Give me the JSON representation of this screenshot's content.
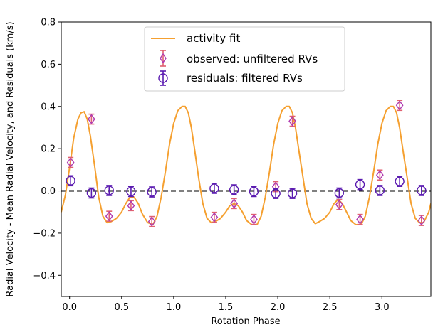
{
  "chart_data": {
    "type": "scatter",
    "xlabel": "Rotation Phase",
    "ylabel": "Radial Velocity - Mean Radial Velocity, and Residuals (km/s)",
    "xlim": [
      -0.08,
      3.47
    ],
    "ylim": [
      -0.5,
      0.8
    ],
    "xticks": [
      0.0,
      0.5,
      1.0,
      1.5,
      2.0,
      2.5,
      3.0
    ],
    "xtick_labels": [
      "0.0",
      "0.5",
      "1.0",
      "1.5",
      "2.0",
      "2.5",
      "3.0"
    ],
    "yticks": [
      -0.4,
      -0.2,
      0.0,
      0.2,
      0.4,
      0.6,
      0.8
    ],
    "ytick_labels": [
      "−0.4",
      "−0.2",
      "0.0",
      "0.2",
      "0.4",
      "0.6",
      "0.8"
    ],
    "legend_position": "top-center",
    "zero_line": {
      "y": 0.0,
      "style": "dashed",
      "color": "#000000"
    },
    "series": [
      {
        "name": "activity fit",
        "kind": "line",
        "color": "#f5a030",
        "x": [
          -0.08,
          -0.04,
          0.0,
          0.04,
          0.08,
          0.11,
          0.14,
          0.17,
          0.2,
          0.24,
          0.28,
          0.32,
          0.36,
          0.4,
          0.45,
          0.5,
          0.54,
          0.58,
          0.62,
          0.66,
          0.7,
          0.75,
          0.8,
          0.84,
          0.88,
          0.92,
          0.96,
          1.0,
          1.04,
          1.08,
          1.11,
          1.14,
          1.17,
          1.2,
          1.24,
          1.28,
          1.32,
          1.36,
          1.4,
          1.45,
          1.5,
          1.54,
          1.58,
          1.62,
          1.66,
          1.7,
          1.75,
          1.8,
          1.84,
          1.88,
          1.92,
          1.96,
          2.0,
          2.04,
          2.08,
          2.11,
          2.14,
          2.17,
          2.2,
          2.24,
          2.28,
          2.32,
          2.36,
          2.4,
          2.45,
          2.5,
          2.54,
          2.58,
          2.62,
          2.66,
          2.7,
          2.75,
          2.8,
          2.84,
          2.88,
          2.92,
          2.96,
          3.0,
          3.04,
          3.08,
          3.11,
          3.14,
          3.17,
          3.2,
          3.24,
          3.28,
          3.32,
          3.36,
          3.4,
          3.45,
          3.47
        ],
        "y": [
          -0.1,
          -0.02,
          0.11,
          0.25,
          0.34,
          0.37,
          0.375,
          0.34,
          0.26,
          0.12,
          -0.03,
          -0.12,
          -0.15,
          -0.145,
          -0.13,
          -0.1,
          -0.06,
          -0.03,
          -0.03,
          -0.06,
          -0.11,
          -0.15,
          -0.16,
          -0.12,
          -0.03,
          0.09,
          0.22,
          0.32,
          0.38,
          0.4,
          0.4,
          0.37,
          0.3,
          0.2,
          0.06,
          -0.06,
          -0.13,
          -0.15,
          -0.145,
          -0.13,
          -0.1,
          -0.07,
          -0.06,
          -0.07,
          -0.1,
          -0.14,
          -0.16,
          -0.16,
          -0.12,
          -0.03,
          0.09,
          0.22,
          0.32,
          0.38,
          0.4,
          0.4,
          0.37,
          0.3,
          0.2,
          0.07,
          -0.06,
          -0.13,
          -0.155,
          -0.145,
          -0.13,
          -0.1,
          -0.06,
          -0.04,
          -0.06,
          -0.1,
          -0.14,
          -0.16,
          -0.16,
          -0.12,
          -0.03,
          0.09,
          0.22,
          0.32,
          0.38,
          0.4,
          0.4,
          0.37,
          0.3,
          0.2,
          0.07,
          -0.06,
          -0.13,
          -0.15,
          -0.15,
          -0.1,
          -0.06
        ]
      },
      {
        "name": "observed: unfiltered RVs",
        "kind": "errorbar",
        "marker": "diamond",
        "color": "#e06070",
        "edge_color": "#b03ab0",
        "x": [
          0.01,
          0.21,
          0.38,
          0.59,
          0.79,
          1.39,
          1.58,
          1.77,
          1.98,
          2.14,
          2.59,
          2.79,
          2.98,
          3.17,
          3.38
        ],
        "y": [
          0.135,
          0.34,
          -0.12,
          -0.07,
          -0.145,
          -0.125,
          -0.06,
          -0.135,
          0.02,
          0.33,
          -0.065,
          -0.135,
          0.075,
          0.405,
          -0.14
        ],
        "yerr": [
          0.02,
          0.02,
          0.02,
          0.02,
          0.02,
          0.02,
          0.02,
          0.02,
          0.02,
          0.02,
          0.02,
          0.02,
          0.02,
          0.02,
          0.02
        ]
      },
      {
        "name": "residuals: filtered RVs",
        "kind": "errorbar",
        "marker": "circle",
        "color": "#5a1ab0",
        "x": [
          0.01,
          0.21,
          0.38,
          0.59,
          0.79,
          1.39,
          1.58,
          1.77,
          1.98,
          2.14,
          2.59,
          2.79,
          2.98,
          3.17,
          3.38
        ],
        "y": [
          0.048,
          -0.01,
          0.002,
          -0.003,
          -0.005,
          0.012,
          0.005,
          -0.003,
          -0.012,
          -0.012,
          -0.01,
          0.03,
          0.002,
          0.045,
          0.002
        ],
        "yerr": [
          0.02,
          0.02,
          0.01,
          0.01,
          0.01,
          0.015,
          0.01,
          0.01,
          0.01,
          0.02,
          0.01,
          0.02,
          0.01,
          0.01,
          0.01
        ]
      }
    ]
  }
}
